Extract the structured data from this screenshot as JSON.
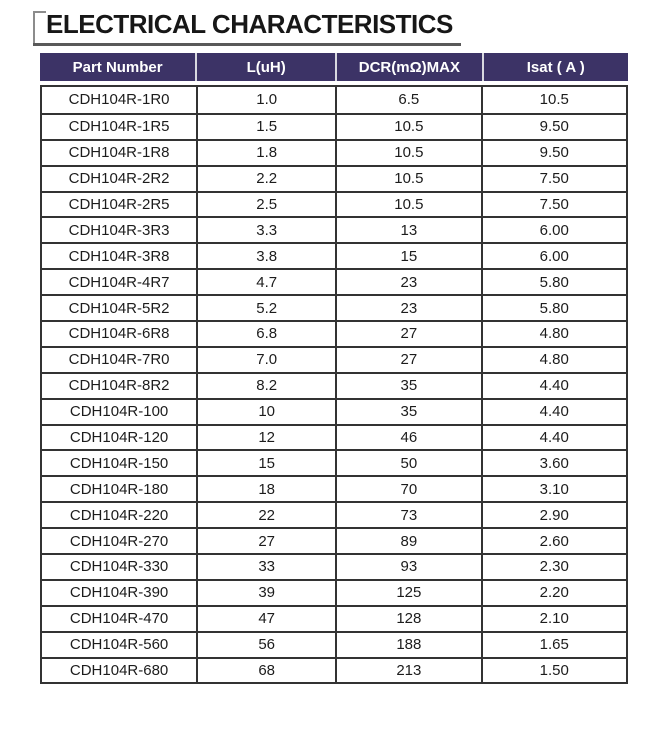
{
  "page": {
    "title": "ELECTRICAL CHARACTERISTICS"
  },
  "colors": {
    "header_bg": "#3c3366",
    "header_text": "#ffffff",
    "header_separator": "#d9d9e0",
    "body_text": "#1c1c1c",
    "border": "#333333",
    "title_underline": "#595959",
    "title_bracket": "#8c8c8c"
  },
  "table": {
    "columns": [
      "Part Number",
      "L(uH)",
      "DCR(mΩ)MAX",
      "Isat ( A )"
    ],
    "rows": [
      [
        "CDH104R-1R0",
        "1.0",
        "6.5",
        "10.5"
      ],
      [
        "CDH104R-1R5",
        "1.5",
        "10.5",
        "9.50"
      ],
      [
        "CDH104R-1R8",
        "1.8",
        "10.5",
        "9.50"
      ],
      [
        "CDH104R-2R2",
        "2.2",
        "10.5",
        "7.50"
      ],
      [
        "CDH104R-2R5",
        "2.5",
        "10.5",
        "7.50"
      ],
      [
        "CDH104R-3R3",
        "3.3",
        "13",
        "6.00"
      ],
      [
        "CDH104R-3R8",
        "3.8",
        "15",
        "6.00"
      ],
      [
        "CDH104R-4R7",
        "4.7",
        "23",
        "5.80"
      ],
      [
        "CDH104R-5R2",
        "5.2",
        "23",
        "5.80"
      ],
      [
        "CDH104R-6R8",
        "6.8",
        "27",
        "4.80"
      ],
      [
        "CDH104R-7R0",
        "7.0",
        "27",
        "4.80"
      ],
      [
        "CDH104R-8R2",
        "8.2",
        "35",
        "4.40"
      ],
      [
        "CDH104R-100",
        "10",
        "35",
        "4.40"
      ],
      [
        "CDH104R-120",
        "12",
        "46",
        "4.40"
      ],
      [
        "CDH104R-150",
        "15",
        "50",
        "3.60"
      ],
      [
        "CDH104R-180",
        "18",
        "70",
        "3.10"
      ],
      [
        "CDH104R-220",
        "22",
        "73",
        "2.90"
      ],
      [
        "CDH104R-270",
        "27",
        "89",
        "2.60"
      ],
      [
        "CDH104R-330",
        "33",
        "93",
        "2.30"
      ],
      [
        "CDH104R-390",
        "39",
        "125",
        "2.20"
      ],
      [
        "CDH104R-470",
        "47",
        "128",
        "2.10"
      ],
      [
        "CDH104R-560",
        "56",
        "188",
        "1.65"
      ],
      [
        "CDH104R-680",
        "68",
        "213",
        "1.50"
      ]
    ]
  }
}
